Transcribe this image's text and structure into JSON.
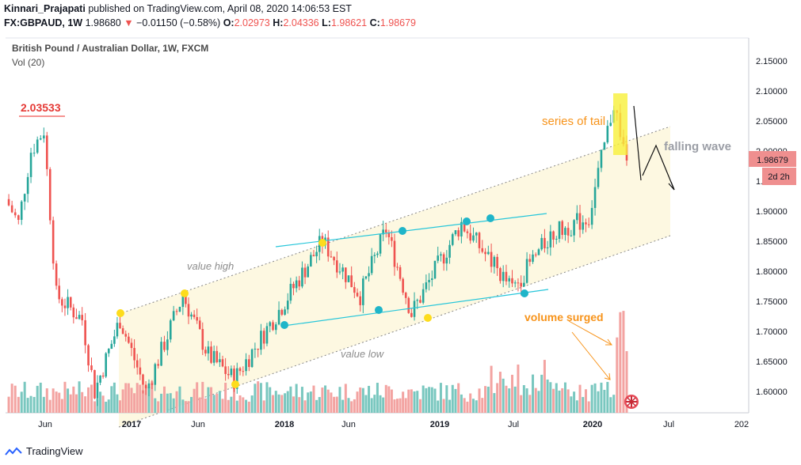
{
  "header": {
    "author": "Kinnari_Prajapati",
    "published": "published on TradingView.com, April 08, 2020 14:06:53 EST",
    "symbol": "FX:GBPAUD, 1W",
    "last": "1.98680",
    "change": "−0.01150 (−0.58%)",
    "o_label": "O:",
    "o": "2.02973",
    "h_label": "H:",
    "h": "2.04336",
    "l_label": "L:",
    "l": "1.98621",
    "c_label": "C:",
    "c": "1.98679"
  },
  "legend": {
    "title": "British Pound / Australian Dollar, 1W, FXCM",
    "volume": "Vol (20)"
  },
  "footer": {
    "brand": "TradingView"
  },
  "colors": {
    "up": "#26a69a",
    "down": "#ef5350",
    "volup": "#79c7bf",
    "voldown": "#f3a3a1",
    "channel": "#fdf8e1",
    "accent": "#f7931a"
  },
  "chart_data": {
    "type": "candlestick",
    "title": "British Pound / Australian Dollar, 1W, FXCM",
    "y_axis": {
      "range": [
        1.57,
        2.16
      ],
      "ticks": [
        "1.60000",
        "1.65000",
        "1.70000",
        "1.75000",
        "1.80000",
        "1.85000",
        "1.90000",
        "1.95000",
        "2.00000",
        "2.05000",
        "2.10000",
        "2.15000"
      ]
    },
    "x_axis": {
      "ticks": [
        "Jun",
        "2017",
        "Jun",
        "2018",
        "Jun",
        "2019",
        "Jul",
        "2020",
        "Jul",
        "202"
      ]
    },
    "price_path": [
      {
        "date": "2016-03",
        "close": 1.92
      },
      {
        "date": "2016-04",
        "close": 1.88
      },
      {
        "date": "2016-05",
        "close": 2.0
      },
      {
        "date": "2016-06",
        "close": 2.035
      },
      {
        "date": "2016-07",
        "close": 1.76
      },
      {
        "date": "2016-09",
        "close": 1.72
      },
      {
        "date": "2016-10",
        "close": 1.6
      },
      {
        "date": "2016-12",
        "close": 1.72
      },
      {
        "date": "2017-02",
        "close": 1.6
      },
      {
        "date": "2017-05",
        "close": 1.76
      },
      {
        "date": "2017-07",
        "close": 1.66
      },
      {
        "date": "2017-09",
        "close": 1.62
      },
      {
        "date": "2018-01",
        "close": 1.75
      },
      {
        "date": "2018-04",
        "close": 1.85
      },
      {
        "date": "2018-07",
        "close": 1.76
      },
      {
        "date": "2018-09",
        "close": 1.87
      },
      {
        "date": "2018-11",
        "close": 1.73
      },
      {
        "date": "2019-03",
        "close": 1.88
      },
      {
        "date": "2019-07",
        "close": 1.77
      },
      {
        "date": "2019-10",
        "close": 1.86
      },
      {
        "date": "2020-01",
        "close": 1.89
      },
      {
        "date": "2020-03",
        "close": 2.08
      },
      {
        "date": "2020-04",
        "close": 1.98679
      }
    ],
    "last_price": "1.98679",
    "countdown": "2d 2h",
    "annotations": {
      "high_marker": "2.03533",
      "channel_upper": "value high",
      "channel_lower": "value low",
      "tails": "series of tail",
      "forecast": "falling wave",
      "volume_note": "volume surged"
    }
  }
}
